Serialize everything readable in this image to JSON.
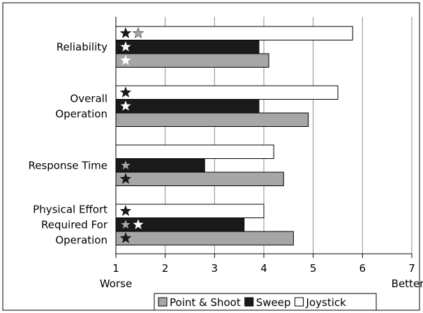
{
  "chart_data": {
    "type": "bar",
    "orientation": "horizontal",
    "title": "",
    "xlabel": "",
    "ylabel": "",
    "xlim": [
      1,
      7
    ],
    "x_ticks": [
      "1",
      "2",
      "3",
      "4",
      "5",
      "6",
      "7"
    ],
    "x_end_labels": {
      "low": "Worse",
      "high": "Better"
    },
    "grid": true,
    "legend_position": "bottom",
    "categories": [
      {
        "lines": [
          "Reliability"
        ]
      },
      {
        "lines": [
          "Overall",
          "Operation"
        ]
      },
      {
        "lines": [
          "Response Time"
        ]
      },
      {
        "lines": [
          "Physical Effort",
          "Required For",
          "Operation"
        ]
      }
    ],
    "series": [
      {
        "name": "Joystick",
        "fill": "#ffffff",
        "values": [
          5.8,
          5.5,
          4.2,
          4.0
        ]
      },
      {
        "name": "Sweep",
        "fill": "#1a1a1a",
        "values": [
          3.9,
          3.9,
          2.8,
          3.6
        ]
      },
      {
        "name": "Point & Shoot",
        "fill": "#a6a6a6",
        "values": [
          4.1,
          4.9,
          4.4,
          4.6
        ]
      }
    ],
    "legend_order": [
      "Point & Shoot",
      "Sweep",
      "Joystick"
    ],
    "stars": [
      [
        [
          "black",
          "gray"
        ],
        [
          "white"
        ],
        [
          "white"
        ]
      ],
      [
        [
          "black"
        ],
        [
          "white"
        ],
        []
      ],
      [
        [],
        [
          "gray"
        ],
        [
          "black"
        ]
      ],
      [
        [
          "black"
        ],
        [
          "gray",
          "white"
        ],
        [
          "black"
        ]
      ]
    ],
    "star_colors": {
      "black": "#1a1a1a",
      "gray": "#a6a6a6",
      "white": "#ffffff"
    }
  }
}
